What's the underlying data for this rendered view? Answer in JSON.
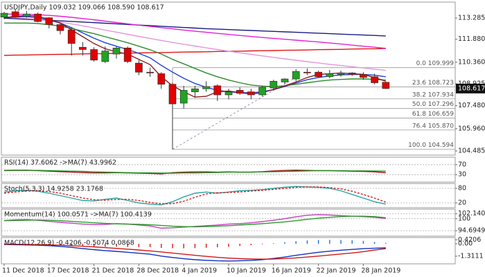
{
  "chart_data": [
    {
      "type": "candlestick",
      "title": "USDJPY,Daily 109.032 109.066 108.590 108.617",
      "categories": [
        "11 Dec 2018",
        null,
        null,
        null,
        "17 Dec 2018",
        null,
        null,
        null,
        "21 Dec 2018",
        null,
        null,
        null,
        "28 Dec 2018",
        null,
        null,
        null,
        "4 Jan 2019",
        null,
        null,
        null,
        "10 Jan 2019",
        null,
        null,
        null,
        "16 Jan 2019",
        null,
        null,
        null,
        "22 Jan 2019",
        null,
        null,
        null,
        "28 Jan 2019",
        null,
        null
      ],
      "open": [
        113.35,
        113.7,
        113.4,
        113.55,
        113.3,
        112.85,
        112.5,
        111.35,
        111.2,
        110.4,
        110.9,
        111.3,
        110.3,
        109.7,
        109.6,
        108.9,
        107.65,
        108.4,
        108.6,
        108.8,
        108.2,
        108.5,
        108.4,
        108.2,
        108.65,
        109.05,
        109.25,
        109.7,
        109.7,
        109.4,
        109.55,
        109.65,
        109.55,
        109.4,
        109.032
      ],
      "high": [
        113.7,
        113.85,
        113.75,
        113.65,
        113.35,
        112.9,
        112.6,
        111.7,
        111.35,
        111.4,
        111.4,
        111.4,
        110.5,
        110.0,
        109.7,
        109.0,
        108.8,
        108.8,
        109.1,
        108.9,
        108.6,
        108.7,
        108.6,
        108.8,
        109.2,
        109.3,
        109.9,
        109.95,
        109.8,
        109.85,
        109.8,
        109.7,
        109.7,
        109.6,
        109.066
      ],
      "low": [
        113.2,
        113.3,
        113.3,
        113.0,
        112.6,
        112.2,
        110.8,
        110.8,
        110.4,
        110.3,
        110.6,
        110.3,
        109.5,
        109.4,
        108.6,
        104.594,
        107.3,
        108.0,
        108.4,
        107.8,
        107.9,
        108.2,
        107.9,
        108.1,
        108.5,
        108.9,
        109.1,
        109.5,
        109.35,
        109.3,
        109.4,
        109.45,
        109.2,
        108.9,
        108.59
      ],
      "close": [
        113.6,
        113.35,
        113.55,
        113.05,
        112.85,
        112.45,
        111.6,
        111.2,
        110.5,
        111.1,
        111.3,
        110.4,
        109.7,
        109.65,
        108.9,
        107.6,
        108.5,
        108.6,
        108.75,
        108.2,
        108.4,
        108.3,
        108.2,
        108.7,
        109.1,
        109.25,
        109.75,
        109.65,
        109.4,
        109.6,
        109.65,
        109.55,
        109.35,
        109.0,
        108.617
      ],
      "up_color": "#22a322",
      "down_color": "#e00000",
      "series": [
        {
          "color": "#1a1a80",
          "values": [
            113.27,
            113.24,
            113.2,
            113.17,
            113.13,
            113.1,
            113.06,
            113.02,
            112.98,
            112.94,
            112.9,
            112.86,
            112.82,
            112.78,
            112.74,
            112.7,
            112.66,
            112.62,
            112.58,
            112.55,
            112.52,
            112.49,
            112.46,
            112.43,
            112.4,
            112.37,
            112.34,
            112.31,
            112.28,
            112.25,
            112.22,
            112.19,
            112.16,
            112.13,
            112.1
          ]
        },
        {
          "color": "#e01818",
          "values": [
            110.81,
            110.83,
            110.84,
            110.85,
            110.87,
            110.88,
            110.89,
            110.91,
            110.92,
            110.93,
            110.95,
            110.96,
            110.97,
            110.99,
            111.0,
            111.01,
            111.03,
            111.04,
            111.05,
            111.07,
            111.08,
            111.09,
            111.11,
            111.12,
            111.13,
            111.15,
            111.16,
            111.17,
            111.19,
            111.2,
            111.21,
            111.23,
            111.24,
            111.25,
            111.27
          ]
        },
        {
          "color": "#e020d8",
          "values": [
            113.55,
            113.54,
            113.53,
            113.5,
            113.46,
            113.4,
            113.33,
            113.25,
            113.17,
            113.08,
            112.99,
            112.9,
            112.81,
            112.73,
            112.65,
            112.57,
            112.49,
            112.41,
            112.34,
            112.27,
            112.2,
            112.13,
            112.06,
            112.0,
            111.94,
            111.88,
            111.82,
            111.76,
            111.7,
            111.63,
            111.56,
            111.49,
            111.42,
            111.35,
            111.28
          ]
        },
        {
          "color": "#e495dc",
          "values": [
            113.33,
            113.3,
            113.26,
            113.2,
            113.12,
            113.02,
            112.9,
            112.77,
            112.63,
            112.49,
            112.35,
            112.21,
            112.07,
            111.93,
            111.8,
            111.67,
            111.55,
            111.43,
            111.31,
            111.2,
            111.09,
            110.98,
            110.88,
            110.78,
            110.68,
            110.58,
            110.49,
            110.4,
            110.31,
            110.22,
            110.14,
            110.06,
            109.98,
            109.9,
            109.82
          ]
        },
        {
          "color": "#1b3fe0",
          "values": [
            113.3,
            113.35,
            113.38,
            113.3,
            113.15,
            112.95,
            112.65,
            112.3,
            111.95,
            111.65,
            111.42,
            111.2,
            110.95,
            110.65,
            110.15,
            109.7,
            109.3,
            108.95,
            108.7,
            108.5,
            108.4,
            108.35,
            108.33,
            108.4,
            108.55,
            108.75,
            108.98,
            109.2,
            109.35,
            109.45,
            109.52,
            109.55,
            109.55,
            109.5,
            109.4
          ]
        },
        {
          "color": "#2b8a2b",
          "values": [
            112.95,
            112.95,
            112.95,
            112.92,
            112.85,
            112.75,
            112.6,
            112.42,
            112.25,
            112.05,
            111.85,
            111.65,
            111.42,
            111.18,
            110.9,
            110.55,
            110.25,
            109.95,
            109.65,
            109.4,
            109.18,
            109.0,
            108.85,
            108.78,
            108.75,
            108.8,
            108.9,
            109.0,
            109.1,
            109.18,
            109.22,
            109.25,
            109.25,
            109.22,
            109.18
          ]
        },
        {
          "color": "#8b1a1a",
          "values": [
            113.3,
            113.4,
            113.45,
            113.4,
            113.2,
            112.95,
            112.5,
            112.05,
            111.6,
            111.25,
            111.05,
            110.9,
            110.55,
            110.2,
            109.4,
            108.8,
            108.4,
            108.05,
            108.1,
            108.4,
            108.45,
            108.35,
            108.25,
            108.35,
            108.55,
            108.8,
            109.05,
            109.35,
            109.55,
            109.6,
            109.65,
            109.6,
            109.55,
            109.35,
            109.1
          ]
        }
      ],
      "fibonacci": [
        {
          "value": 109.999,
          "label": "0.0 109.999"
        },
        {
          "value": 108.723,
          "label": "23.6 108.723"
        },
        {
          "value": 107.934,
          "label": "38.2 107.934"
        },
        {
          "value": 107.296,
          "label": "50.0 107.296"
        },
        {
          "value": 106.659,
          "label": "61.8 106.659"
        },
        {
          "value": 105.87,
          "label": "76.4 105.870"
        },
        {
          "value": 104.594,
          "label": "100.0 104.594"
        }
      ],
      "ylim": [
        104.21,
        114.34
      ],
      "yticks": [
        113.285,
        {
          "value": 111.88,
          "label": "111.880"
        },
        {
          "value": 110.36,
          "label": "110.360"
        },
        108.925,
        {
          "value": 107.48,
          "label": "107.480"
        },
        {
          "value": 105.96,
          "label": "105.960"
        },
        104.485
      ],
      "grid": false
    },
    {
      "type": "line",
      "title": "RSI(14) 37.6062 ->MA(7) 43.9962",
      "ylim": [
        0,
        100
      ],
      "yticks": [
        70,
        30
      ],
      "grid": true,
      "series": [
        {
          "color": "#a01818",
          "values": [
            47,
            48,
            48,
            46,
            44,
            42,
            40,
            38,
            37,
            37,
            38,
            37,
            36,
            35,
            33,
            38,
            40,
            41,
            41,
            40,
            41,
            40,
            40,
            42,
            45,
            47,
            48,
            47,
            46,
            46,
            45,
            44,
            43,
            41,
            37.6062
          ]
        },
        {
          "color": "#1f8a1f",
          "values": [
            46,
            47,
            47,
            47,
            46,
            45,
            44,
            43,
            41,
            40,
            39,
            38,
            37,
            37,
            36,
            36,
            37,
            37,
            38,
            39,
            40,
            40,
            40,
            41,
            42,
            43,
            44,
            45,
            46,
            46,
            46,
            45,
            45,
            44.5,
            43.9962
          ]
        }
      ]
    },
    {
      "type": "line",
      "title": "Stoch(5,3,3) 14.9258 23.1768",
      "ylim": [
        0,
        100
      ],
      "yticks": [
        80,
        20
      ],
      "grid": true,
      "series": [
        {
          "color": "#2aa3a3",
          "values": [
            65,
            70,
            72,
            68,
            60,
            50,
            40,
            30,
            28,
            35,
            40,
            30,
            20,
            15,
            12,
            25,
            45,
            60,
            65,
            60,
            65,
            70,
            72,
            75,
            80,
            85,
            88,
            86,
            84,
            80,
            70,
            55,
            40,
            25,
            14.9258
          ]
        },
        {
          "color": "#d02020",
          "style": "dashed",
          "values": [
            60,
            65,
            69,
            70,
            67,
            60,
            50,
            40,
            33,
            31,
            34,
            35,
            30,
            22,
            16,
            17,
            27,
            43,
            57,
            62,
            63,
            65,
            69,
            72,
            76,
            80,
            84,
            86,
            86,
            83,
            78,
            68,
            55,
            40,
            23.1768
          ]
        }
      ]
    },
    {
      "type": "line",
      "title": "Momentum(14) 100.0571 ->MA(7) 100.4139",
      "ylim": [
        92.3,
        104.2
      ],
      "yticks": [
        102.1406,
        100,
        94.6949
      ],
      "grid": true,
      "series": [
        {
          "color": "#c040c0",
          "values": [
            99.2,
            99.5,
            99.6,
            99.3,
            98.8,
            98.4,
            98.0,
            97.6,
            97.4,
            97.5,
            97.8,
            97.6,
            97.2,
            96.8,
            95.8,
            96.0,
            96.3,
            96.6,
            96.9,
            97.2,
            97.6,
            97.8,
            98.2,
            98.7,
            99.3,
            100.0,
            100.8,
            101.5,
            101.8,
            101.6,
            101.3,
            101.1,
            100.9,
            100.6,
            100.0571
          ]
        },
        {
          "color": "#2a9a2a",
          "values": [
            99.1,
            99.2,
            99.3,
            99.4,
            99.3,
            99.1,
            98.8,
            98.5,
            98.2,
            97.9,
            97.7,
            97.6,
            97.5,
            97.3,
            97.0,
            96.7,
            96.5,
            96.4,
            96.5,
            96.7,
            96.9,
            97.2,
            97.5,
            97.8,
            98.2,
            98.6,
            99.1,
            99.7,
            100.2,
            100.6,
            100.9,
            101.1,
            101.1,
            100.9,
            100.4139
          ]
        }
      ]
    },
    {
      "type": "line",
      "title": "MACD(12,26,9) -0.4206 -0.5074 0.0868",
      "ylim": [
        -2.12,
        0.66
      ],
      "yticks": [
        0.4206,
        {
          "value": 0,
          "label": "0.00"
        },
        -1.3111
      ],
      "grid": false,
      "series": [
        {
          "style": "histogram",
          "color": "#1e6be0",
          "negative_color": "#e01010",
          "values": [
            -0.04,
            -0.04,
            -0.05,
            -0.06,
            -0.09,
            -0.13,
            -0.18,
            -0.24,
            -0.29,
            -0.31,
            -0.31,
            -0.33,
            -0.34,
            -0.35,
            -0.44,
            -0.47,
            -0.48,
            -0.46,
            -0.42,
            -0.37,
            -0.31,
            -0.23,
            -0.15,
            -0.06,
            0.06,
            0.16,
            0.27,
            0.35,
            0.4,
            0.41,
            0.4,
            0.37,
            0.31,
            0.19,
            0.0868
          ]
        },
        {
          "color": "#1030c0",
          "values": [
            -0.08,
            -0.1,
            -0.12,
            -0.15,
            -0.2,
            -0.28,
            -0.38,
            -0.5,
            -0.62,
            -0.72,
            -0.8,
            -0.9,
            -1.0,
            -1.1,
            -1.3,
            -1.45,
            -1.58,
            -1.68,
            -1.75,
            -1.8,
            -1.82,
            -1.8,
            -1.76,
            -1.68,
            -1.55,
            -1.4,
            -1.22,
            -1.05,
            -0.9,
            -0.78,
            -0.68,
            -0.6,
            -0.52,
            -0.47,
            -0.4206
          ]
        },
        {
          "color": "#d01818",
          "values": [
            -0.04,
            -0.06,
            -0.07,
            -0.09,
            -0.11,
            -0.15,
            -0.2,
            -0.26,
            -0.33,
            -0.41,
            -0.49,
            -0.57,
            -0.66,
            -0.75,
            -0.86,
            -0.98,
            -1.1,
            -1.22,
            -1.33,
            -1.43,
            -1.51,
            -1.57,
            -1.61,
            -1.62,
            -1.61,
            -1.56,
            -1.49,
            -1.4,
            -1.3,
            -1.19,
            -1.08,
            -0.97,
            -0.83,
            -0.66,
            -0.5074
          ]
        }
      ]
    }
  ]
}
